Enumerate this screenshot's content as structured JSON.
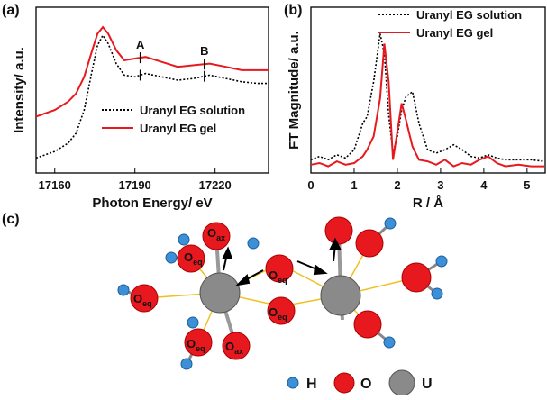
{
  "chart_data": [
    {
      "type": "line",
      "panel": "(a)",
      "xlabel": "Photon Energy/ eV",
      "ylabel": "Intensity/ a.u.",
      "x": [
        17153,
        17160,
        17165,
        17168,
        17171,
        17174,
        17176,
        17178,
        17180,
        17183,
        17186,
        17190,
        17194,
        17200,
        17206,
        17212,
        17218,
        17224,
        17230,
        17236,
        17240
      ],
      "series": [
        {
          "name": "Uranyl EG solution",
          "color": "#000000",
          "dash": "dotted",
          "values": [
            0.09,
            0.13,
            0.18,
            0.24,
            0.38,
            0.62,
            0.77,
            0.83,
            0.78,
            0.66,
            0.59,
            0.58,
            0.6,
            0.58,
            0.56,
            0.57,
            0.59,
            0.57,
            0.55,
            0.54,
            0.54
          ]
        },
        {
          "name": "Uranyl EG gel",
          "color": "#e8191e",
          "dash": "solid",
          "values": [
            0.34,
            0.38,
            0.43,
            0.48,
            0.58,
            0.74,
            0.84,
            0.88,
            0.84,
            0.74,
            0.68,
            0.69,
            0.7,
            0.67,
            0.64,
            0.65,
            0.66,
            0.64,
            0.62,
            0.62,
            0.62
          ]
        }
      ],
      "annotations": [
        {
          "text": "A",
          "x": 17192
        },
        {
          "text": "B",
          "x": 17216
        }
      ],
      "xlim": [
        17153,
        17240
      ],
      "xticks": [
        17160,
        17190,
        17220
      ],
      "ylim": [
        0,
        1
      ],
      "legend": "lower right"
    },
    {
      "type": "line",
      "panel": "(b)",
      "xlabel": "R / Å",
      "ylabel": "FT Magnitude/ a.u.",
      "x": [
        0,
        0.2,
        0.4,
        0.6,
        0.8,
        1.0,
        1.2,
        1.3,
        1.45,
        1.6,
        1.7,
        1.8,
        1.9,
        2.0,
        2.1,
        2.2,
        2.35,
        2.5,
        2.7,
        2.9,
        3.1,
        3.3,
        3.5,
        3.7,
        3.9,
        4.1,
        4.3,
        4.5,
        4.8,
        5.1,
        5.4
      ],
      "series": [
        {
          "name": "Uranyl EG solution",
          "color": "#000000",
          "dash": "dotted",
          "values": [
            0.08,
            0.1,
            0.08,
            0.11,
            0.09,
            0.14,
            0.3,
            0.34,
            0.55,
            0.84,
            0.72,
            0.35,
            0.12,
            0.22,
            0.38,
            0.46,
            0.49,
            0.3,
            0.14,
            0.12,
            0.14,
            0.17,
            0.14,
            0.1,
            0.09,
            0.11,
            0.09,
            0.08,
            0.08,
            0.08,
            0.07
          ]
        },
        {
          "name": "Uranyl EG gel",
          "color": "#e8191e",
          "dash": "solid",
          "values": [
            0.05,
            0.06,
            0.04,
            0.07,
            0.05,
            0.06,
            0.1,
            0.14,
            0.22,
            0.45,
            0.78,
            0.55,
            0.08,
            0.25,
            0.42,
            0.32,
            0.16,
            0.08,
            0.07,
            0.05,
            0.08,
            0.04,
            0.06,
            0.05,
            0.08,
            0.1,
            0.06,
            0.04,
            0.05,
            0.04,
            0.04
          ]
        }
      ],
      "xlim": [
        0,
        5.42
      ],
      "xticks": [
        0,
        1,
        2,
        3,
        4,
        5
      ],
      "ylim": [
        0,
        1
      ],
      "legend": "upper right"
    }
  ],
  "diagram": {
    "panel": "(c)",
    "labels": [
      {
        "base": "O",
        "sub": "ax"
      },
      {
        "base": "O",
        "sub": "eq"
      },
      {
        "base": "O",
        "sub": "eq"
      },
      {
        "base": "O",
        "sub": "eq"
      },
      {
        "base": "O",
        "sub": "eq"
      },
      {
        "base": "O",
        "sub": "eq"
      },
      {
        "base": "O",
        "sub": "ax"
      }
    ],
    "legend": [
      "H",
      "O",
      "U"
    ]
  }
}
